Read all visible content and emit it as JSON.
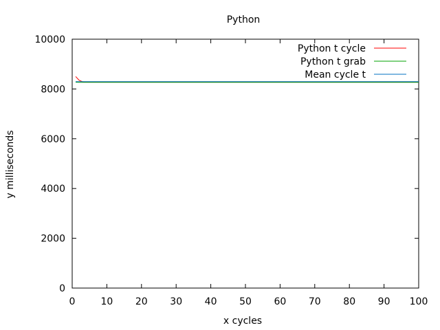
{
  "chart_data": {
    "type": "line",
    "title": "Python",
    "xlabel": "x cycles",
    "ylabel": "y milliseconds",
    "xlim": [
      0,
      100
    ],
    "ylim": [
      0,
      10000
    ],
    "xticks": [
      "0",
      "10",
      "20",
      "30",
      "40",
      "50",
      "60",
      "70",
      "80",
      "90",
      "100"
    ],
    "yticks": [
      "0",
      "2000",
      "4000",
      "6000",
      "8000",
      "10000"
    ],
    "legend_position": "top-right",
    "grid": false,
    "series": [
      {
        "name": "Python t cycle",
        "color": "#ff0000",
        "x": [
          1,
          2,
          3,
          4,
          5,
          6,
          7,
          8,
          9,
          10,
          20,
          30,
          40,
          50,
          60,
          70,
          80,
          90,
          100
        ],
        "values": [
          8500,
          8350,
          8290,
          8285,
          8285,
          8285,
          8285,
          8285,
          8285,
          8285,
          8285,
          8285,
          8285,
          8285,
          8285,
          8285,
          8285,
          8285,
          8285
        ]
      },
      {
        "name": "Python t grab",
        "color": "#00a000",
        "x": [
          1,
          2,
          3,
          4,
          5,
          6,
          7,
          8,
          9,
          10,
          20,
          30,
          40,
          50,
          60,
          70,
          80,
          90,
          100
        ],
        "values": [
          8270,
          8265,
          8265,
          8265,
          8265,
          8265,
          8265,
          8265,
          8265,
          8265,
          8265,
          8265,
          8265,
          8265,
          8265,
          8265,
          8265,
          8265,
          8265
        ]
      },
      {
        "name": "Mean cycle t",
        "color": "#0070c0",
        "x": [
          1,
          100
        ],
        "values": [
          8295,
          8295
        ]
      }
    ]
  }
}
